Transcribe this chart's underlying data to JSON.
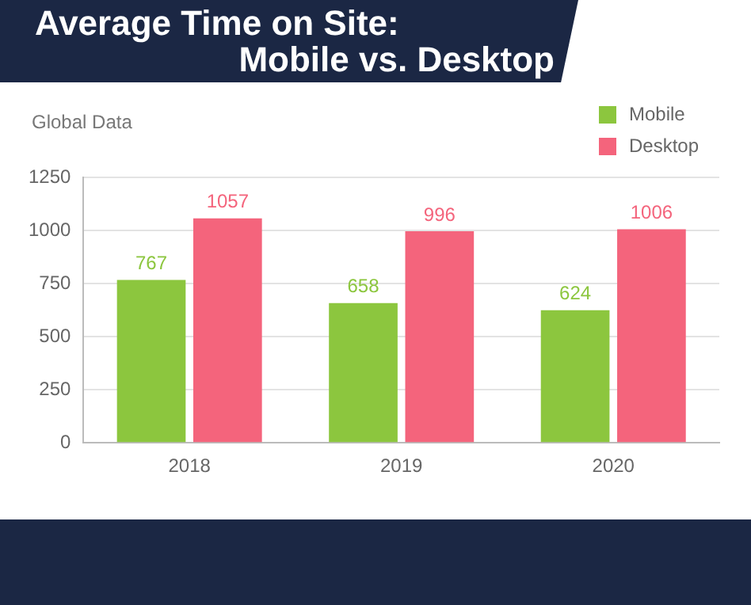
{
  "chart_data": {
    "type": "bar",
    "title": "Average Time on Site:",
    "subtitle": "Mobile vs. Desktop",
    "ylabel": "Global Data",
    "categories": [
      "2018",
      "2019",
      "2020"
    ],
    "series": [
      {
        "name": "Mobile",
        "color": "#8cc63e",
        "values": [
          767,
          658,
          624
        ]
      },
      {
        "name": "Desktop",
        "color": "#f4647c",
        "values": [
          1057,
          996,
          1006
        ]
      }
    ],
    "ylim": [
      0,
      1250
    ],
    "yticks": [
      0,
      250,
      500,
      750,
      1000,
      1250
    ],
    "grid": "y",
    "legend": "top right",
    "data_labels": true
  }
}
